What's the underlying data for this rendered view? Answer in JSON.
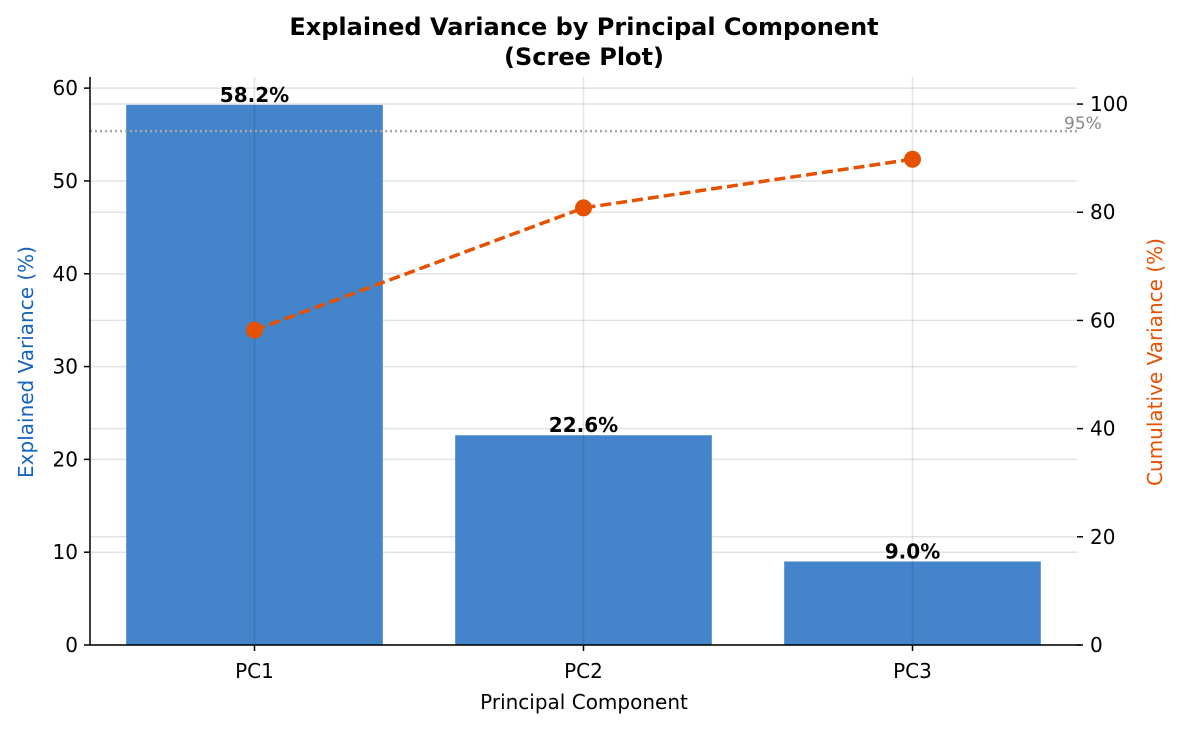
{
  "chart_data": {
    "type": "bar",
    "title": "Explained Variance by Principal Component",
    "subtitle": "(Scree Plot)",
    "xlabel": "Principal Component",
    "ylabel": "Explained Variance (%)",
    "y2label": "Cumulative Variance (%)",
    "categories": [
      "PC1",
      "PC2",
      "PC3"
    ],
    "values": [
      58.2,
      22.6,
      9.0
    ],
    "data_labels": [
      "58.2%",
      "22.6%",
      "9.0%"
    ],
    "cumulative": [
      58.2,
      80.8,
      89.8
    ],
    "threshold": {
      "value": 95,
      "label": "95%"
    },
    "ylim": [
      0,
      61.2
    ],
    "y2lim": [
      0,
      105
    ],
    "yticks": [
      0,
      10,
      20,
      30,
      40,
      50,
      60
    ],
    "y2ticks": [
      0,
      20,
      40,
      60,
      80,
      100
    ],
    "grid": true,
    "colors": {
      "bar": "#4384CA",
      "line": "#E65100",
      "ylabel": "#1565C0",
      "y2label": "#E65100",
      "threshold": "#A8A8A8"
    }
  }
}
